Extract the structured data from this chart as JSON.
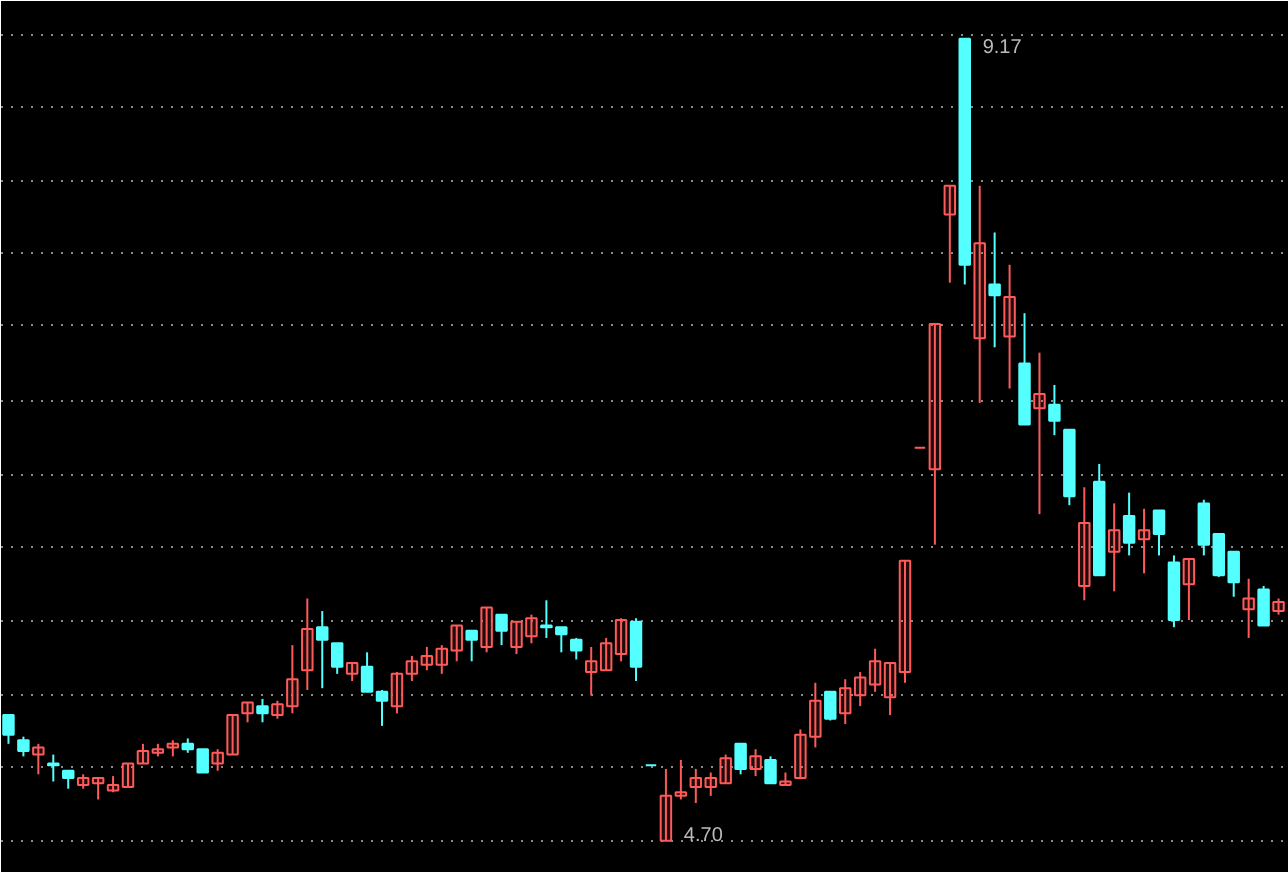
{
  "chart_data": {
    "type": "candlestick",
    "categories": [
      null,
      null,
      null,
      null,
      null,
      null,
      null,
      null,
      null,
      null,
      null,
      null,
      null,
      null,
      null,
      null,
      null,
      null,
      null,
      null,
      null,
      null,
      null,
      null,
      null,
      null,
      null,
      null,
      null,
      null,
      null,
      null,
      null,
      null,
      null,
      null,
      null,
      null,
      null,
      null,
      null,
      null,
      null,
      null,
      null,
      null,
      null,
      null,
      null,
      null,
      null,
      null,
      null,
      null,
      null,
      null,
      null,
      null,
      null,
      null,
      null,
      null,
      null,
      null,
      null,
      null,
      null,
      null,
      null,
      null,
      null,
      null,
      null,
      null,
      null,
      null,
      null,
      null,
      null,
      null,
      null,
      null,
      null,
      null,
      null,
      null
    ],
    "ohlc": [
      [
        5.4,
        5.4,
        5.24,
        5.29
      ],
      [
        5.26,
        5.28,
        5.17,
        5.2
      ],
      [
        5.18,
        5.24,
        5.07,
        5.22
      ],
      [
        5.13,
        5.18,
        5.03,
        5.12
      ],
      [
        5.09,
        5.09,
        4.99,
        5.05
      ],
      [
        5.01,
        5.07,
        4.99,
        5.05
      ],
      [
        5.02,
        5.05,
        4.93,
        5.05
      ],
      [
        4.98,
        5.06,
        4.97,
        5.01
      ],
      [
        5.0,
        5.13,
        5.0,
        5.13
      ],
      [
        5.13,
        5.24,
        5.13,
        5.2
      ],
      [
        5.19,
        5.24,
        5.17,
        5.21
      ],
      [
        5.22,
        5.26,
        5.17,
        5.24
      ],
      [
        5.24,
        5.27,
        5.19,
        5.21
      ],
      [
        5.21,
        5.21,
        5.08,
        5.08
      ],
      [
        5.13,
        5.21,
        5.09,
        5.19
      ],
      [
        5.18,
        5.4,
        5.18,
        5.4
      ],
      [
        5.41,
        5.47,
        5.36,
        5.47
      ],
      [
        5.45,
        5.49,
        5.36,
        5.41
      ],
      [
        5.4,
        5.48,
        5.38,
        5.46
      ],
      [
        5.45,
        5.79,
        5.41,
        5.6
      ],
      [
        5.65,
        6.05,
        5.54,
        5.88
      ],
      [
        5.89,
        5.98,
        5.55,
        5.82
      ],
      [
        5.8,
        5.8,
        5.63,
        5.67
      ],
      [
        5.63,
        5.69,
        5.59,
        5.69
      ],
      [
        5.67,
        5.75,
        5.53,
        5.53
      ],
      [
        5.53,
        5.54,
        5.34,
        5.48
      ],
      [
        5.45,
        5.64,
        5.41,
        5.63
      ],
      [
        5.63,
        5.73,
        5.59,
        5.7
      ],
      [
        5.68,
        5.78,
        5.65,
        5.73
      ],
      [
        5.68,
        5.79,
        5.63,
        5.77
      ],
      [
        5.76,
        5.9,
        5.7,
        5.9
      ],
      [
        5.87,
        5.87,
        5.7,
        5.82
      ],
      [
        5.78,
        6.0,
        5.75,
        6.0
      ],
      [
        5.96,
        5.96,
        5.79,
        5.87
      ],
      [
        5.78,
        5.92,
        5.74,
        5.92
      ],
      [
        5.84,
        5.96,
        5.8,
        5.94
      ],
      [
        5.9,
        6.04,
        5.83,
        5.89
      ],
      [
        5.89,
        5.89,
        5.75,
        5.85
      ],
      [
        5.82,
        5.83,
        5.71,
        5.76
      ],
      [
        5.64,
        5.78,
        5.51,
        5.7
      ],
      [
        5.65,
        5.83,
        5.65,
        5.8
      ],
      [
        5.74,
        5.94,
        5.7,
        5.93
      ],
      [
        5.92,
        5.94,
        5.59,
        5.67
      ],
      [
        5.12,
        5.12,
        5.12,
        5.12
      ],
      [
        4.7,
        5.1,
        4.7,
        4.95
      ],
      [
        4.95,
        5.15,
        4.93,
        4.97
      ],
      [
        5.0,
        5.1,
        4.91,
        5.05
      ],
      [
        5.0,
        5.08,
        4.95,
        5.05
      ],
      [
        5.02,
        5.18,
        5.02,
        5.16
      ],
      [
        5.24,
        5.24,
        5.07,
        5.1
      ],
      [
        5.1,
        5.21,
        5.06,
        5.17
      ],
      [
        5.15,
        5.17,
        5.02,
        5.02
      ],
      [
        5.01,
        5.08,
        5.01,
        5.03
      ],
      [
        5.05,
        5.32,
        5.05,
        5.29
      ],
      [
        5.28,
        5.58,
        5.22,
        5.48
      ],
      [
        5.53,
        5.53,
        5.37,
        5.38
      ],
      [
        5.41,
        5.6,
        5.35,
        5.55
      ],
      [
        5.51,
        5.64,
        5.45,
        5.61
      ],
      [
        5.57,
        5.77,
        5.53,
        5.7
      ],
      [
        5.5,
        5.69,
        5.4,
        5.69
      ],
      [
        5.64,
        6.26,
        5.58,
        6.26
      ],
      [
        6.89,
        6.89,
        6.89,
        6.89
      ],
      [
        6.77,
        7.58,
        6.35,
        7.58
      ],
      [
        8.19,
        8.35,
        7.81,
        8.35
      ],
      [
        9.17,
        9.17,
        7.8,
        7.91
      ],
      [
        7.5,
        8.35,
        7.14,
        8.03
      ],
      [
        7.8,
        8.09,
        7.45,
        7.74
      ],
      [
        7.51,
        7.91,
        7.22,
        7.73
      ],
      [
        7.36,
        7.64,
        7.02,
        7.02
      ],
      [
        7.11,
        7.42,
        6.52,
        7.19
      ],
      [
        7.13,
        7.24,
        6.96,
        7.04
      ],
      [
        6.99,
        6.99,
        6.57,
        6.62
      ],
      [
        6.12,
        6.67,
        6.04,
        6.47
      ],
      [
        6.7,
        6.8,
        6.18,
        6.18
      ],
      [
        6.31,
        6.58,
        6.09,
        6.43
      ],
      [
        6.51,
        6.64,
        6.29,
        6.36
      ],
      [
        6.38,
        6.55,
        6.19,
        6.43
      ],
      [
        6.54,
        6.54,
        6.29,
        6.41
      ],
      [
        6.25,
        6.29,
        5.89,
        5.93
      ],
      [
        6.13,
        6.27,
        5.93,
        6.27
      ],
      [
        6.58,
        6.6,
        6.29,
        6.35
      ],
      [
        6.41,
        6.41,
        6.17,
        6.18
      ],
      [
        6.31,
        6.31,
        6.06,
        6.14
      ],
      [
        5.99,
        6.16,
        5.83,
        6.05
      ],
      [
        6.1,
        6.12,
        5.9,
        5.9
      ],
      [
        5.98,
        6.05,
        5.96,
        6.03
      ]
    ],
    "colors": [
      "#54ffff",
      "#54ffff",
      "#ff5a5a",
      "#54ffff",
      "#54ffff",
      "#ff5a5a",
      "#ff5a5a",
      "#ff5a5a",
      "#ff5a5a",
      "#ff5a5a",
      "#ff5a5a",
      "#ff5a5a",
      "#54ffff",
      "#54ffff",
      "#ff5a5a",
      "#ff5a5a",
      "#ff5a5a",
      "#54ffff",
      "#ff5a5a",
      "#ff5a5a",
      "#ff5a5a",
      "#54ffff",
      "#54ffff",
      "#ff5a5a",
      "#54ffff",
      "#54ffff",
      "#ff5a5a",
      "#ff5a5a",
      "#ff5a5a",
      "#ff5a5a",
      "#ff5a5a",
      "#54ffff",
      "#ff5a5a",
      "#54ffff",
      "#ff5a5a",
      "#ff5a5a",
      "#54ffff",
      "#54ffff",
      "#54ffff",
      "#ff5a5a",
      "#ff5a5a",
      "#ff5a5a",
      "#54ffff",
      "#54ffff",
      "#ff5a5a",
      "#ff5a5a",
      "#ff5a5a",
      "#ff5a5a",
      "#ff5a5a",
      "#54ffff",
      "#ff5a5a",
      "#54ffff",
      "#ff5a5a",
      "#ff5a5a",
      "#ff5a5a",
      "#54ffff",
      "#ff5a5a",
      "#ff5a5a",
      "#ff5a5a",
      "#ff5a5a",
      "#ff5a5a",
      "#ff5a5a",
      "#ff5a5a",
      "#ff5a5a",
      "#54ffff",
      "#ff5a5a",
      "#54ffff",
      "#ff5a5a",
      "#54ffff",
      "#ff5a5a",
      "#54ffff",
      "#54ffff",
      "#ff5a5a",
      "#54ffff",
      "#ff5a5a",
      "#54ffff",
      "#ff5a5a",
      "#54ffff",
      "#54ffff",
      "#ff5a5a",
      "#54ffff",
      "#54ffff",
      "#54ffff",
      "#ff5a5a",
      "#54ffff",
      "#ff5a5a"
    ],
    "ylim": [
      4.52,
      9.38
    ],
    "yticks": [
      {
        "value": 4.7,
        "label": null
      },
      {
        "value": 5.11,
        "label": null
      },
      {
        "value": 5.51,
        "label": null
      },
      {
        "value": 5.93,
        "label": null
      },
      {
        "value": 6.34,
        "label": null
      },
      {
        "value": 6.74,
        "label": null
      },
      {
        "value": 7.15,
        "label": null
      },
      {
        "value": 7.57,
        "label": null
      },
      {
        "value": 7.97,
        "label": null
      },
      {
        "value": 8.38,
        "label": null
      },
      {
        "value": 8.79,
        "label": null
      },
      {
        "value": 9.19,
        "label": null
      }
    ],
    "grid": "y",
    "tick_labels": false,
    "annotations": [
      "9.17",
      "4.70"
    ]
  }
}
